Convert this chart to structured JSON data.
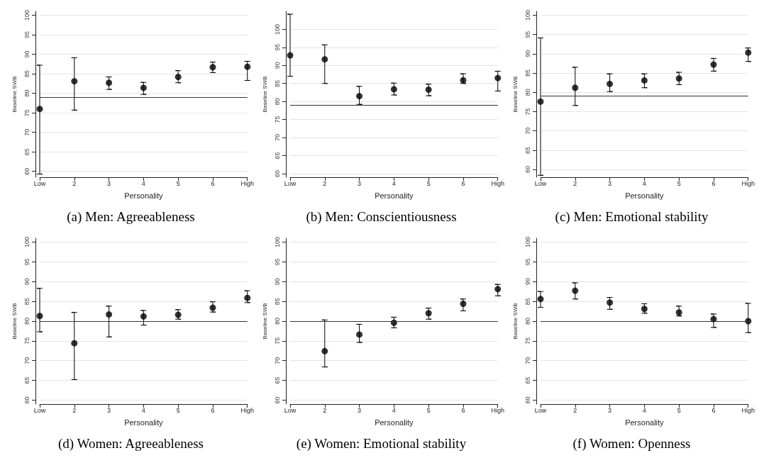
{
  "chart_data": [
    {
      "type": "scatter",
      "title": "(a) Men: Agreeableness",
      "xlabel": "Personality",
      "ylabel": "Baseline SWB",
      "categories": [
        "Low",
        "2",
        "3",
        "4",
        "5",
        "6",
        "High"
      ],
      "series": [
        {
          "color": "#000000",
          "values": [
            76,
            83.1,
            82.7,
            81.4,
            84.2,
            86.7,
            86.8
          ],
          "errors": [
            [
              59.3,
              87.2
            ],
            [
              75.7,
              89.1
            ],
            [
              81,
              84.2
            ],
            [
              79.7,
              82.8
            ],
            [
              82.7,
              85.8
            ],
            [
              85.3,
              88
            ],
            [
              83.3,
              88.2
            ]
          ]
        }
      ],
      "ylim": [
        58.5,
        101
      ],
      "yticks": [
        60,
        65,
        70,
        75,
        80,
        85,
        90,
        95,
        100
      ],
      "ref_lines": [
        {
          "axis": "y",
          "value": 79,
          "color": "#333333"
        }
      ],
      "grid": "y",
      "marker": "circle"
    },
    {
      "type": "scatter",
      "title": "(b) Men: Conscientiousness",
      "xlabel": "Personality",
      "ylabel": "Baseline SWB",
      "categories": [
        "Low",
        "2",
        "3",
        "4",
        "5",
        "6",
        "High"
      ],
      "series": [
        {
          "color": "#000000",
          "values": [
            92.8,
            91.7,
            81.5,
            83.4,
            83.3,
            85.9,
            86.5
          ],
          "errors": [
            [
              87,
              104.2
            ],
            [
              85,
              95.7
            ],
            [
              79.2,
              84.2
            ],
            [
              81.8,
              85.1
            ],
            [
              81.6,
              84.8
            ],
            [
              85,
              87.7
            ],
            [
              82.9,
              88.4
            ]
          ]
        }
      ],
      "ylim": [
        59,
        105
      ],
      "yticks": [
        60,
        65,
        70,
        75,
        80,
        85,
        90,
        95,
        100
      ],
      "ref_lines": [
        {
          "axis": "y",
          "value": 79,
          "color": "#333333"
        }
      ],
      "grid": "y",
      "marker": "circle"
    },
    {
      "type": "scatter",
      "title": "(c) Men: Emotional stability",
      "xlabel": "Personality",
      "ylabel": "Baseline SWB",
      "categories": [
        "Low",
        "2",
        "3",
        "4",
        "5",
        "6",
        "High"
      ],
      "series": [
        {
          "color": "#000000",
          "values": [
            77.6,
            81.2,
            82.2,
            83.1,
            83.6,
            87.2,
            90.3
          ],
          "errors": [
            [
              58.5,
              94.1
            ],
            [
              76.6,
              86.5
            ],
            [
              80.2,
              84.8
            ],
            [
              81.2,
              84.8
            ],
            [
              82,
              85.2
            ],
            [
              85.5,
              88.8
            ],
            [
              88,
              91.5
            ]
          ]
        }
      ],
      "ylim": [
        58,
        101
      ],
      "yticks": [
        60,
        65,
        70,
        75,
        80,
        85,
        90,
        95,
        100
      ],
      "ref_lines": [
        {
          "axis": "y",
          "value": 79,
          "color": "#333333"
        }
      ],
      "grid": "y",
      "marker": "circle"
    },
    {
      "type": "scatter",
      "title": "(d) Women: Agreeableness",
      "xlabel": "Personality",
      "ylabel": "Baseline SWB",
      "categories": [
        "Low",
        "2",
        "3",
        "4",
        "5",
        "6",
        "High"
      ],
      "series": [
        {
          "color": "#000000",
          "values": [
            81.3,
            74.4,
            81.7,
            81.2,
            81.6,
            83.4,
            85.9
          ],
          "errors": [
            [
              77.3,
              88.3
            ],
            [
              65.2,
              82.2
            ],
            [
              76,
              83.8
            ],
            [
              79,
              82.7
            ],
            [
              80.5,
              82.9
            ],
            [
              82.3,
              84.9
            ],
            [
              84.7,
              87.7
            ]
          ]
        }
      ],
      "ylim": [
        59,
        101
      ],
      "yticks": [
        60,
        65,
        70,
        75,
        80,
        85,
        90,
        95,
        100
      ],
      "ref_lines": [
        {
          "axis": "y",
          "value": 80,
          "color": "#333333"
        }
      ],
      "grid": "y",
      "marker": "circle"
    },
    {
      "type": "scatter",
      "title": "(e) Women: Emotional stability",
      "xlabel": "Personality",
      "ylabel": "Baseline SWB",
      "categories": [
        "Low",
        "2",
        "3",
        "4",
        "5",
        "6",
        "High"
      ],
      "series": [
        {
          "color": "#000000",
          "values": [
            null,
            72.4,
            76.6,
            79.6,
            82,
            84.4,
            88.1
          ],
          "errors": [
            null,
            [
              68.4,
              80.3
            ],
            [
              74.6,
              79.2
            ],
            [
              78.3,
              81
            ],
            [
              80.5,
              83.3
            ],
            [
              82.6,
              85.6
            ],
            [
              86.4,
              89.3
            ]
          ]
        }
      ],
      "ylim": [
        59,
        101
      ],
      "yticks": [
        60,
        65,
        70,
        75,
        80,
        85,
        90,
        95,
        100
      ],
      "ref_lines": [
        {
          "axis": "y",
          "value": 80,
          "color": "#333333"
        }
      ],
      "grid": "y",
      "marker": "circle"
    },
    {
      "type": "scatter",
      "title": "(f) Women: Openness",
      "xlabel": "Personality",
      "ylabel": "Baseline SWB",
      "categories": [
        "Low",
        "2",
        "3",
        "4",
        "5",
        "6",
        "High"
      ],
      "series": [
        {
          "color": "#000000",
          "values": [
            85.6,
            87.7,
            84.7,
            83.1,
            82.2,
            80.5,
            80
          ],
          "errors": [
            [
              83.5,
              87.5
            ],
            [
              85.6,
              89.7
            ],
            [
              83,
              86
            ],
            [
              82,
              84.4
            ],
            [
              81.3,
              83.8
            ],
            [
              78.4,
              81.8
            ],
            [
              77.1,
              84.5
            ]
          ]
        }
      ],
      "ylim": [
        59,
        101
      ],
      "yticks": [
        60,
        65,
        70,
        75,
        80,
        85,
        90,
        95,
        100
      ],
      "ref_lines": [
        {
          "axis": "y",
          "value": 80,
          "color": "#333333"
        }
      ],
      "grid": "y",
      "marker": "circle"
    }
  ]
}
